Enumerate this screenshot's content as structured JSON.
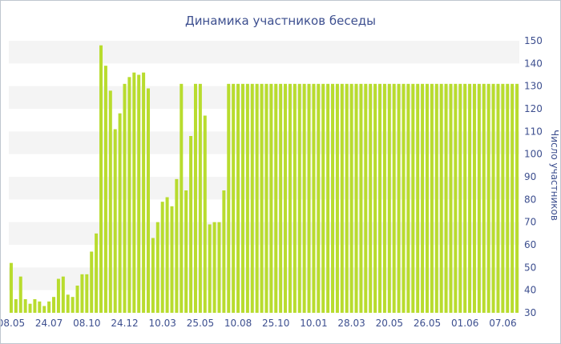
{
  "chart_data": {
    "type": "bar",
    "title": "Динамика участников беседы",
    "xlabel": "",
    "ylabel": "Число участников",
    "ylim": [
      30,
      150
    ],
    "y_ticks": [
      30,
      40,
      50,
      60,
      70,
      80,
      90,
      100,
      110,
      120,
      130,
      140,
      150
    ],
    "y_axis_side": "right",
    "grid": "alternating horizontal bands",
    "colors": {
      "bar": "#b8dc2e",
      "text": "#3d4f8f",
      "band": "#f4f4f4"
    },
    "x_tick_labels": [
      {
        "index": 0,
        "label": "08.05"
      },
      {
        "index": 8,
        "label": "24.07"
      },
      {
        "index": 16,
        "label": "08.10"
      },
      {
        "index": 24,
        "label": "24.12"
      },
      {
        "index": 32,
        "label": "10.03"
      },
      {
        "index": 40,
        "label": "25.05"
      },
      {
        "index": 48,
        "label": "10.08"
      },
      {
        "index": 56,
        "label": "25.10"
      },
      {
        "index": 64,
        "label": "10.01"
      },
      {
        "index": 72,
        "label": "28.03"
      },
      {
        "index": 80,
        "label": "20.05"
      },
      {
        "index": 88,
        "label": "26.05"
      },
      {
        "index": 96,
        "label": "01.06"
      },
      {
        "index": 104,
        "label": "07.06"
      }
    ],
    "values": [
      52,
      36,
      46,
      36,
      34,
      36,
      35,
      33,
      35,
      37,
      45,
      46,
      38,
      37,
      42,
      47,
      47,
      57,
      65,
      148,
      139,
      128,
      111,
      118,
      131,
      134,
      136,
      135,
      136,
      129,
      63,
      70,
      79,
      81,
      77,
      89,
      131,
      84,
      108,
      131,
      131,
      117,
      69,
      70,
      70,
      84,
      131,
      131,
      131,
      131,
      131,
      131,
      131,
      131,
      131,
      131,
      131,
      131,
      131,
      131,
      131,
      131,
      131,
      131,
      131,
      131,
      131,
      131,
      131,
      131,
      131,
      131,
      131,
      131,
      131,
      131,
      131,
      131,
      131,
      131,
      131,
      131,
      131,
      131,
      131,
      131,
      131,
      131,
      131,
      131,
      131,
      131,
      131,
      131,
      131,
      131,
      131,
      131,
      131,
      131,
      131,
      131,
      131,
      131,
      131,
      131,
      131,
      131
    ]
  }
}
